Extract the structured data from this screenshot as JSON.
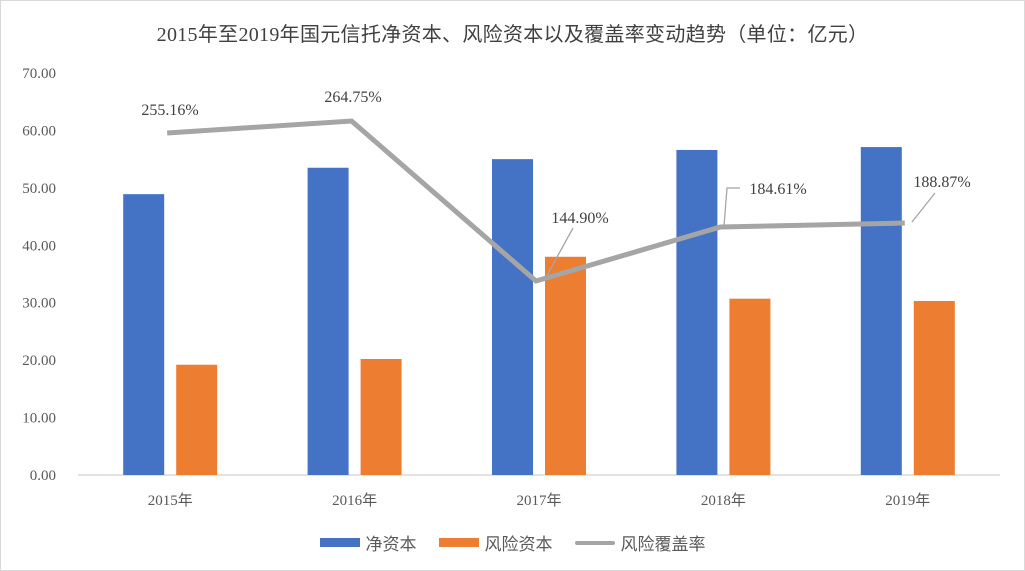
{
  "title": "2015年至2019年国元信托净资本、风险资本以及覆盖率变动趋势（单位：亿元）",
  "colors": {
    "net_capital": "#4472c4",
    "risk_capital": "#ed7d31",
    "coverage": "#a5a5a5"
  },
  "legend": {
    "net_capital": "净资本",
    "risk_capital": "风险资本",
    "coverage": "风险覆盖率"
  },
  "y_ticks": [
    "0.00",
    "10.00",
    "20.00",
    "30.00",
    "40.00",
    "50.00",
    "60.00",
    "70.00"
  ],
  "categories": [
    "2015年",
    "2016年",
    "2017年",
    "2018年",
    "2019年"
  ],
  "coverage_labels": [
    "255.16%",
    "264.75%",
    "144.90%",
    "184.61%",
    "188.87%"
  ],
  "chart_data": {
    "type": "bar",
    "title": "2015年至2019年国元信托净资本、风险资本以及覆盖率变动趋势（单位：亿元）",
    "categories": [
      "2015年",
      "2016年",
      "2017年",
      "2018年",
      "2019年"
    ],
    "series": [
      {
        "name": "净资本",
        "type": "bar",
        "axis": "primary",
        "values": [
          48.9,
          53.5,
          55.0,
          56.6,
          57.1
        ]
      },
      {
        "name": "风险资本",
        "type": "bar",
        "axis": "primary",
        "values": [
          19.2,
          20.2,
          38.0,
          30.7,
          30.3
        ]
      },
      {
        "name": "风险覆盖率",
        "type": "line",
        "axis": "secondary (hidden)",
        "values": [
          255.16,
          264.75,
          144.9,
          184.61,
          188.87
        ],
        "unit": "%"
      }
    ],
    "xlabel": "",
    "ylabel": "",
    "ylim": [
      0,
      70
    ],
    "y_tick_step": 10,
    "grid": false,
    "legend_position": "bottom"
  }
}
